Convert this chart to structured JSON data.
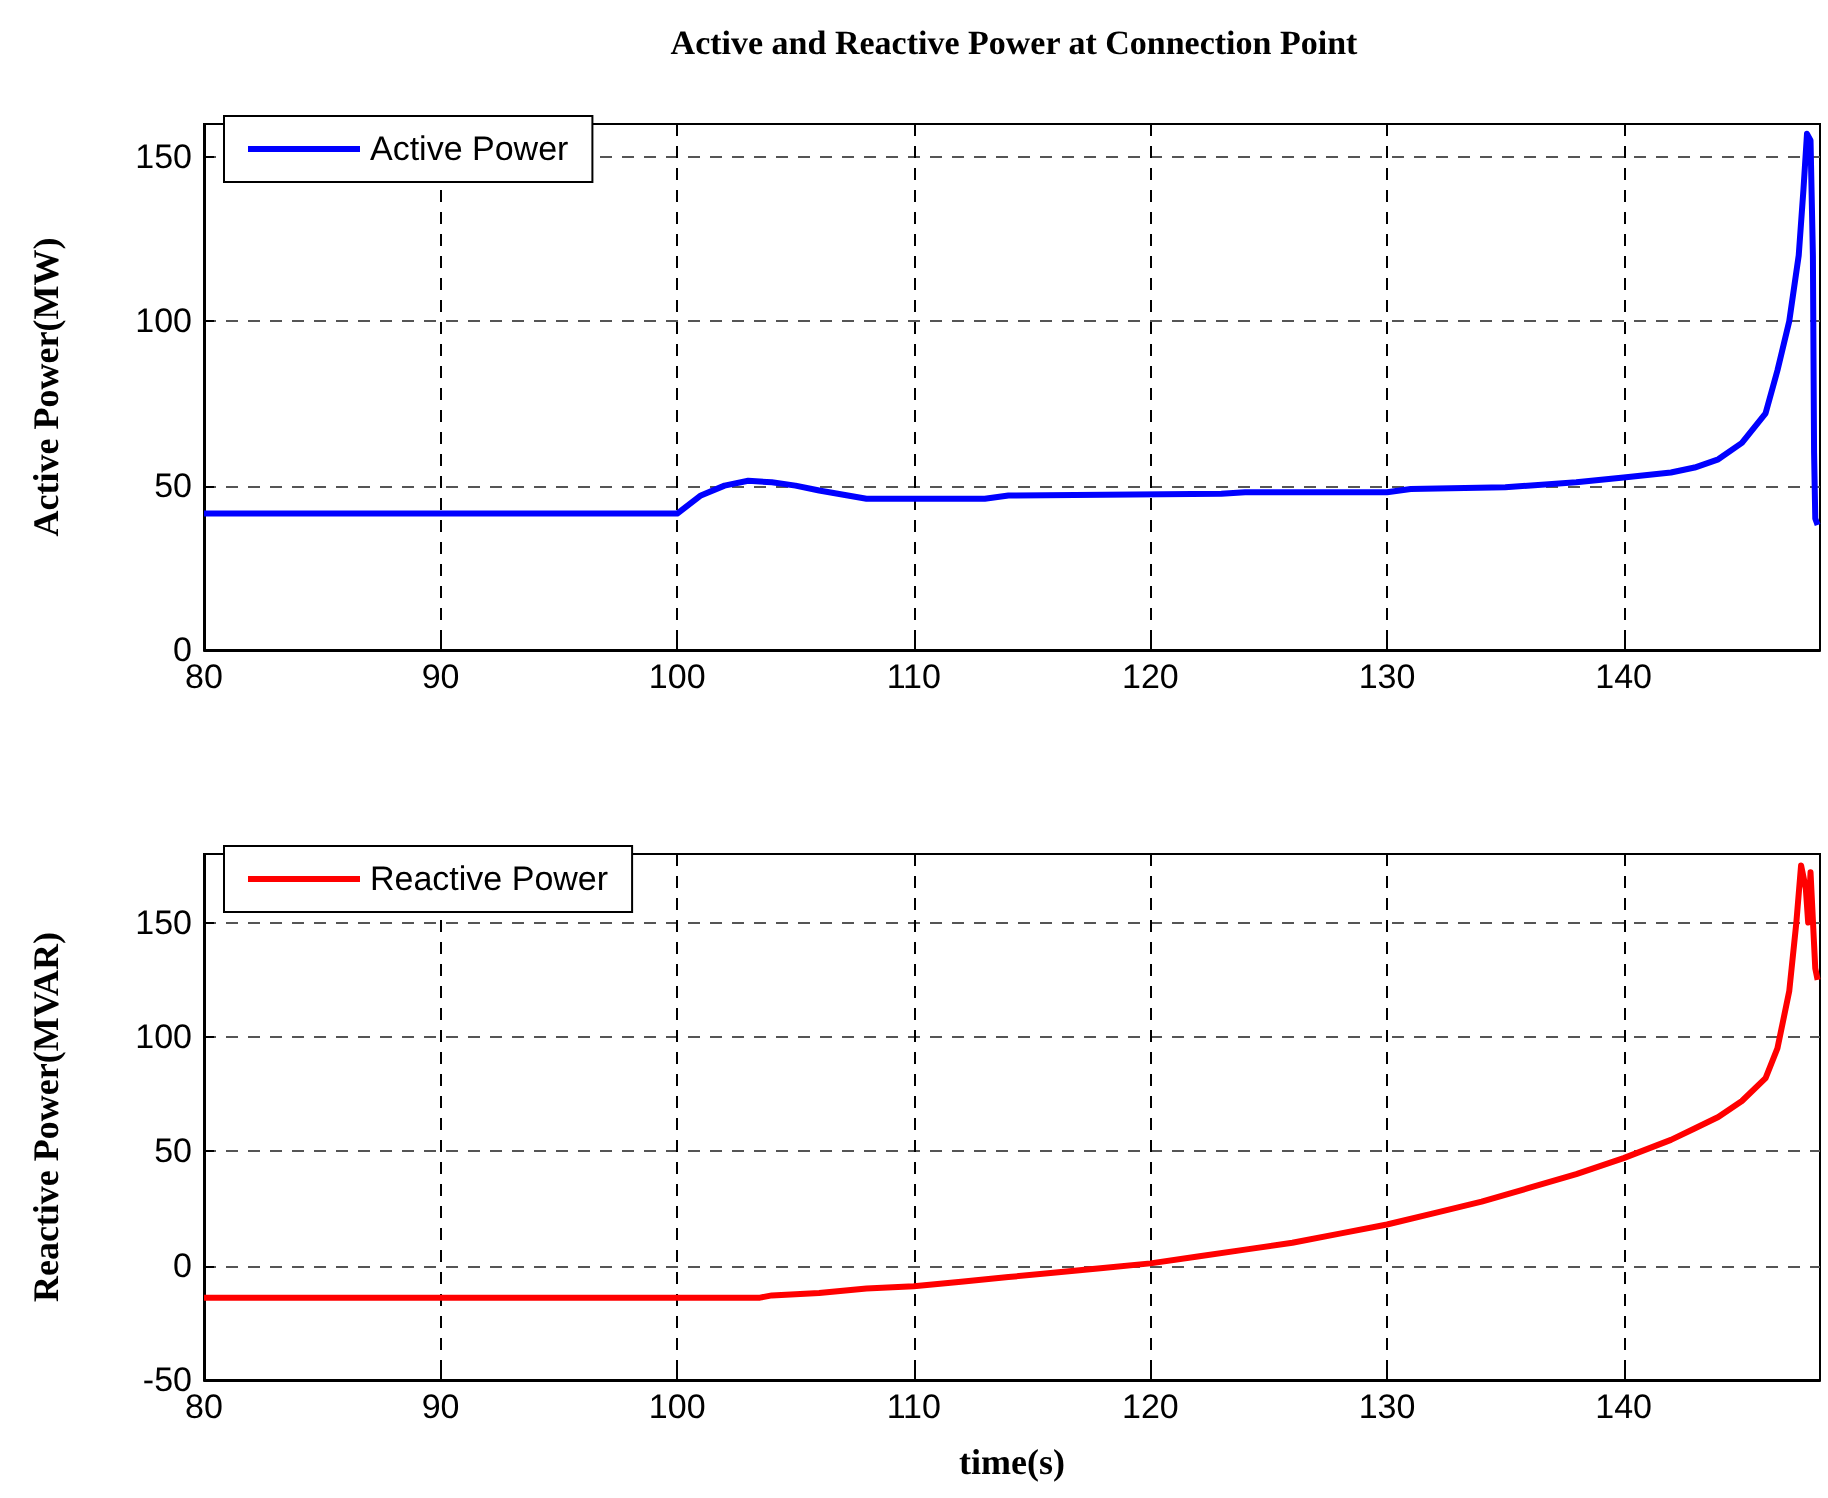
{
  "chart_data": [
    {
      "type": "line",
      "title": "Active and Reactive Power at Connection Point",
      "ylabel": "Active Power(MW)",
      "xlim": [
        80,
        148.3
      ],
      "xticks": [
        80,
        90,
        100,
        110,
        120,
        130,
        140
      ],
      "ylim": [
        0,
        160
      ],
      "yticks": [
        0,
        50,
        100,
        150
      ],
      "grid": true,
      "legend": "top left",
      "marker": "none",
      "line_style": "solid",
      "series": [
        {
          "name": "Active Power",
          "color": "#0000ff",
          "x": [
            80,
            100,
            101,
            102,
            103,
            104,
            105,
            106,
            108,
            113,
            114,
            123,
            124,
            130,
            131,
            135,
            138,
            140,
            142,
            143,
            144,
            145,
            146,
            146.5,
            147,
            147.4,
            147.6,
            147.75,
            147.9,
            148.0,
            148.05,
            148.1,
            148.2
          ],
          "values": [
            41.5,
            41.5,
            47,
            50,
            51.5,
            51,
            50,
            48.5,
            46,
            46,
            47,
            47.5,
            48,
            48,
            49,
            49.5,
            51,
            52.5,
            54,
            55.5,
            58,
            63,
            72,
            85,
            100,
            120,
            140,
            157,
            155,
            120,
            60,
            40,
            38
          ]
        }
      ]
    },
    {
      "type": "line",
      "xlabel": "time(s)",
      "ylabel": "Reactive Power(MVAR)",
      "xlim": [
        80,
        148.3
      ],
      "xticks": [
        80,
        90,
        100,
        110,
        120,
        130,
        140
      ],
      "ylim": [
        -50,
        180
      ],
      "yticks": [
        -50,
        0,
        50,
        100,
        150
      ],
      "grid": true,
      "legend": "top left",
      "marker": "none",
      "line_style": "solid",
      "series": [
        {
          "name": "Reactive Power",
          "color": "#ff0000",
          "x": [
            80,
            103.5,
            104,
            106,
            108,
            110,
            112,
            114,
            116,
            118,
            120,
            122,
            124,
            126,
            128,
            130,
            132,
            134,
            136,
            138,
            140,
            142,
            143,
            144,
            145,
            146,
            146.5,
            147,
            147.3,
            147.5,
            147.7,
            147.8,
            147.9,
            148.1,
            148.2
          ],
          "values": [
            -14,
            -14,
            -13,
            -12,
            -10,
            -9,
            -7,
            -5,
            -3,
            -1,
            1,
            4,
            7,
            10,
            14,
            18,
            23,
            28,
            34,
            40,
            47,
            55,
            60,
            65,
            72,
            82,
            95,
            120,
            150,
            175,
            165,
            150,
            172,
            130,
            125
          ]
        }
      ]
    }
  ]
}
